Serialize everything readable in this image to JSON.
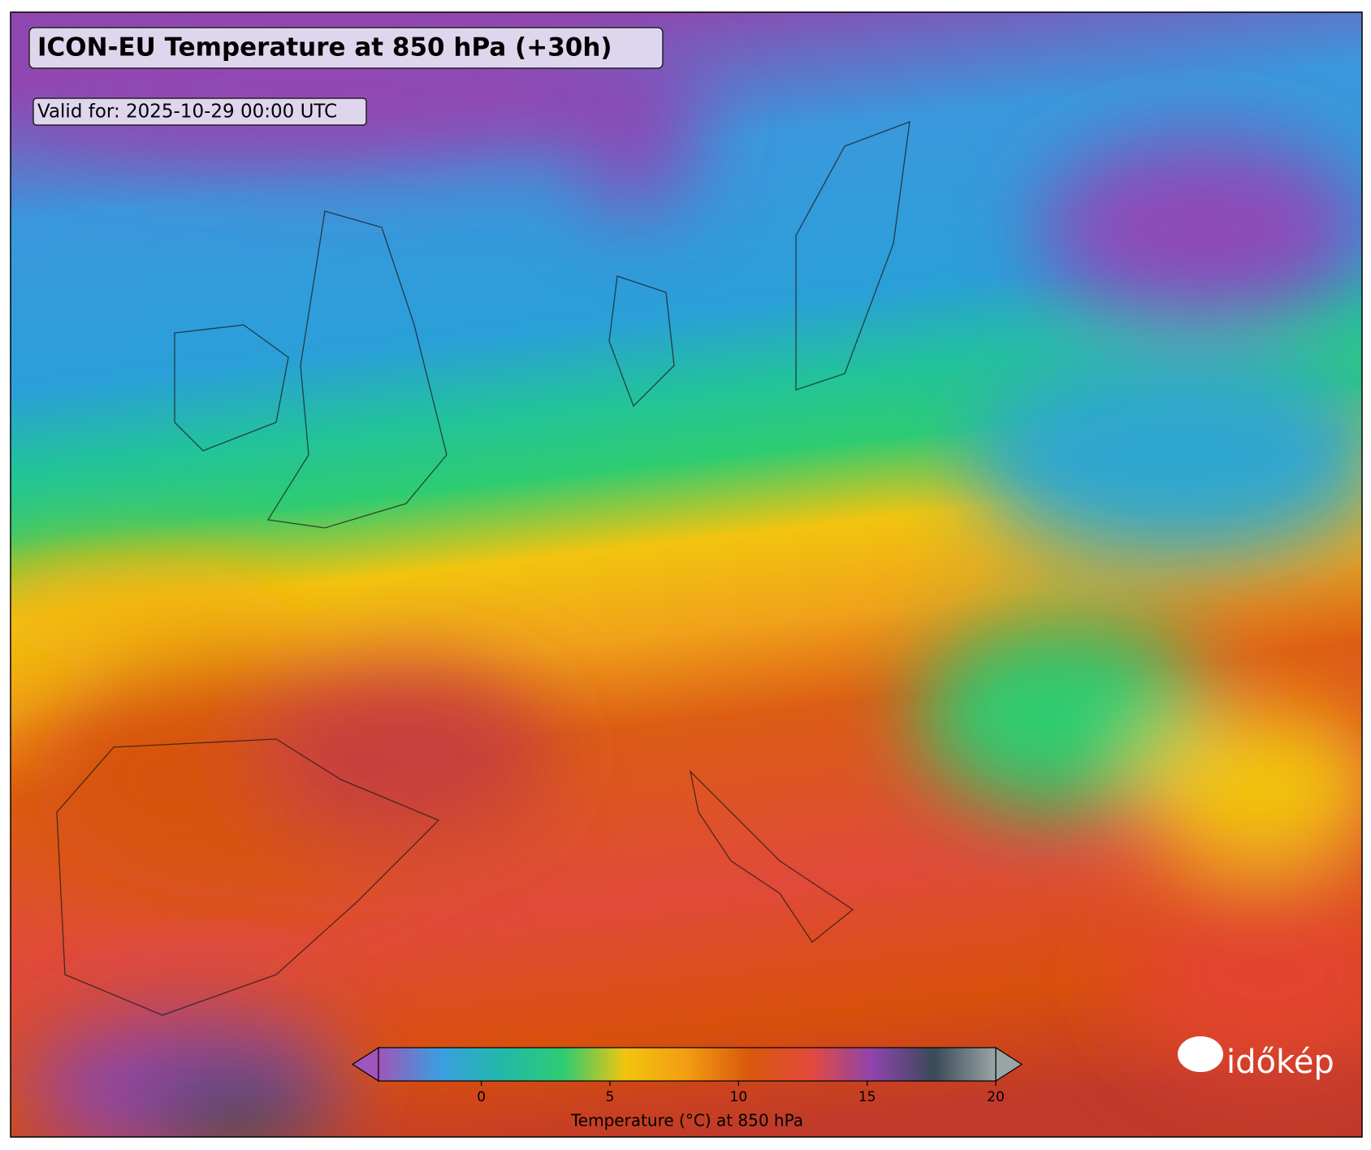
{
  "header": {
    "title": "ICON-EU Temperature at 850 hPa (+30h)",
    "valid": "Valid for: 2025-10-29 00:00 UTC"
  },
  "colorbar": {
    "label": "Temperature (°C) at 850 hPa",
    "lim": [
      -4,
      20
    ],
    "ticks": [
      0,
      5,
      10,
      15,
      20
    ],
    "colors": [
      "#a055b8",
      "#3a9ee0",
      "#22b8a8",
      "#2ecc71",
      "#f2c40f",
      "#f39c12",
      "#d9580c",
      "#e24a3c",
      "#8e44ad",
      "#3a4a58",
      "#9aa5a6"
    ]
  },
  "logo": "időkép"
}
